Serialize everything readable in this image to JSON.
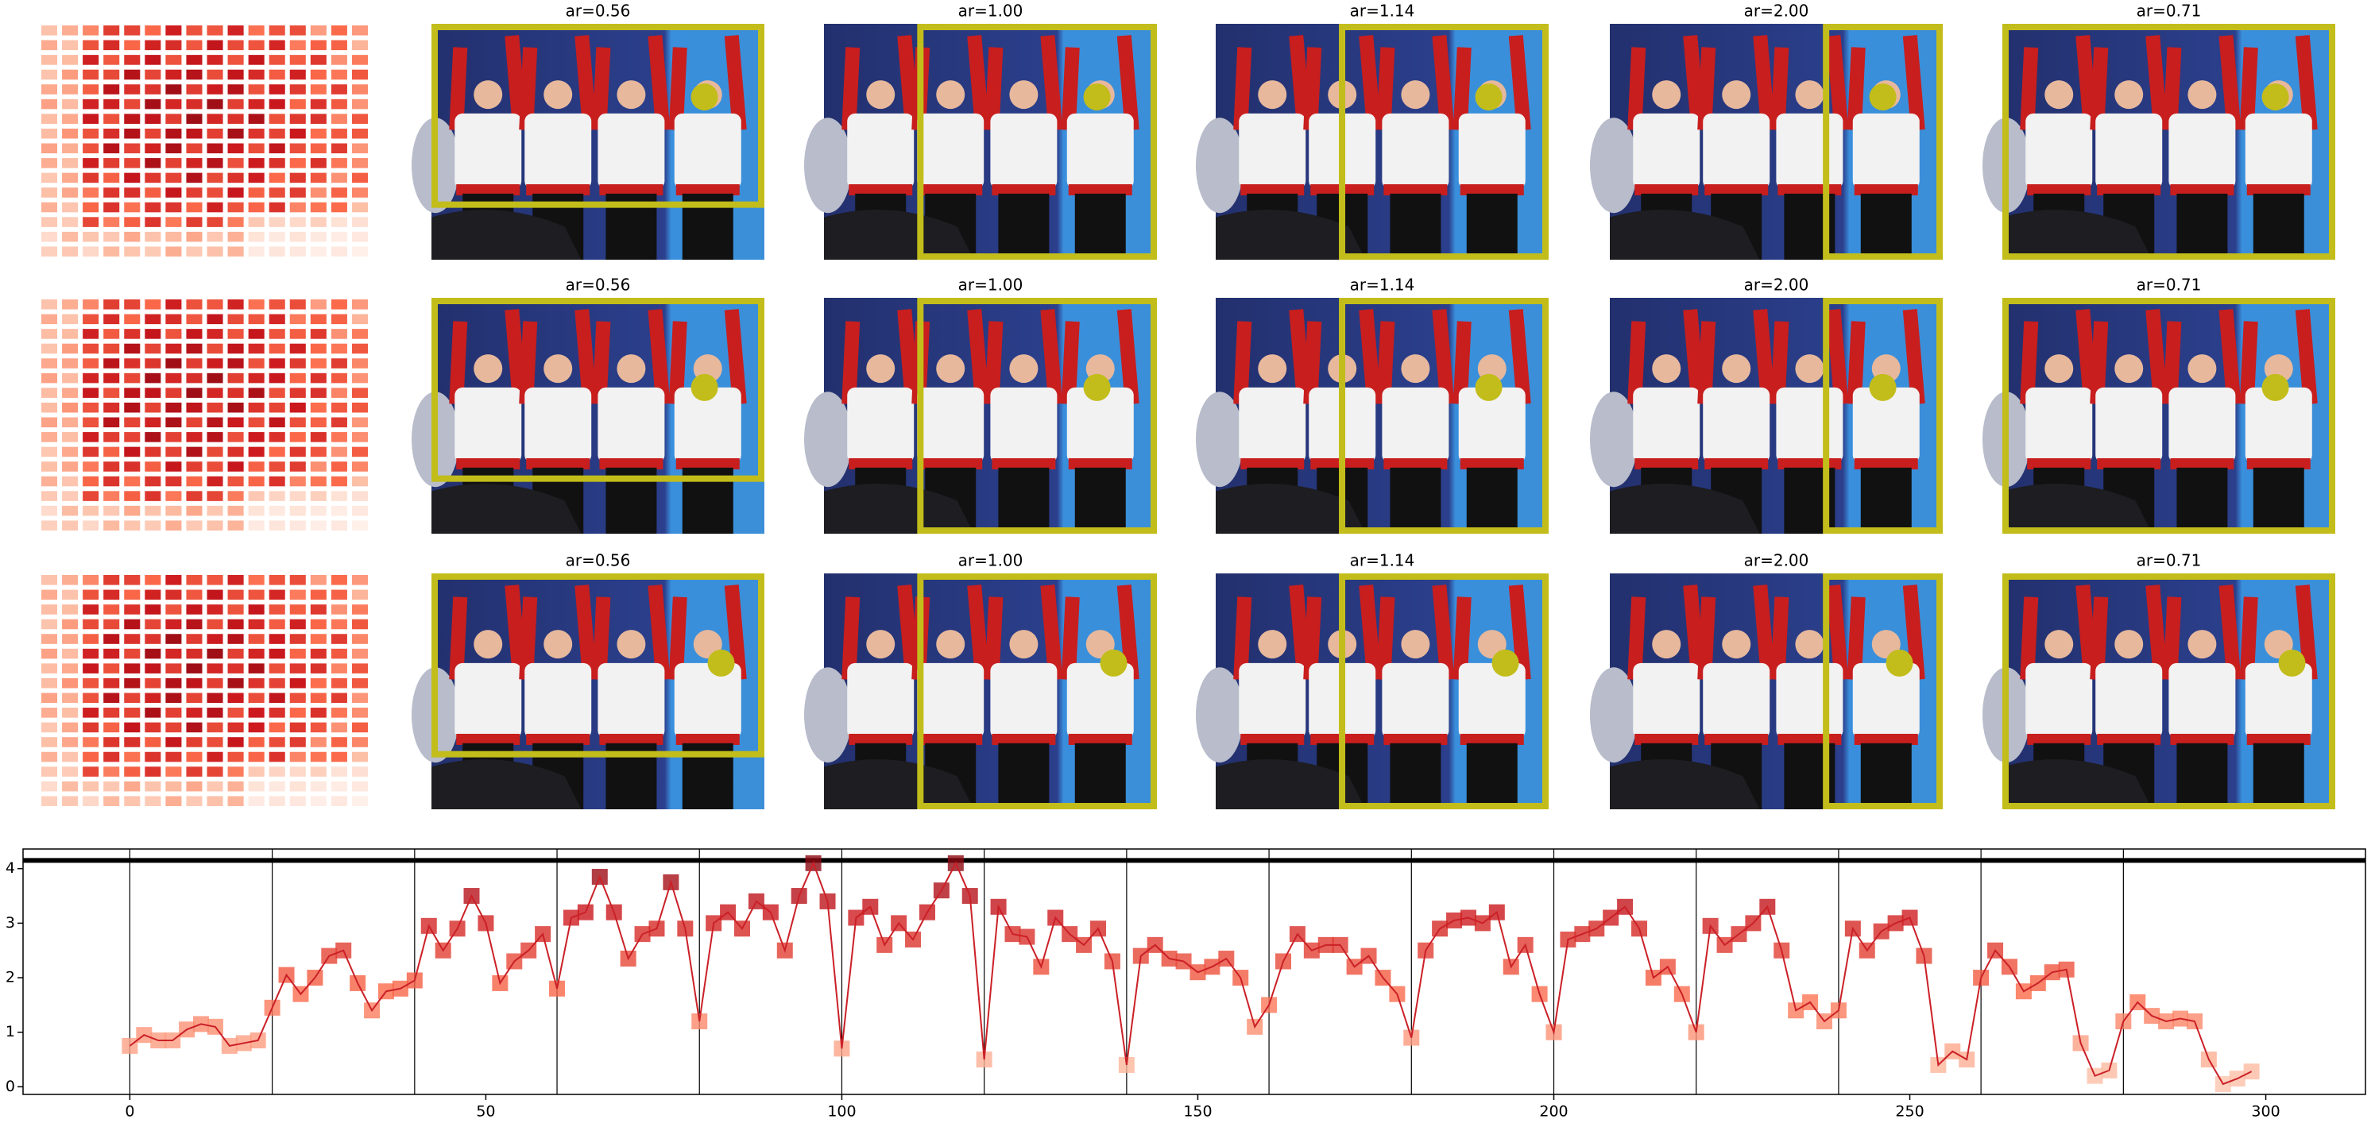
{
  "rows": [
    [
      "ar=0.56",
      "ar=1.00",
      "ar=1.14",
      "ar=2.00",
      "ar=0.71"
    ],
    [
      "ar=0.56",
      "ar=1.00",
      "ar=1.14",
      "ar=2.00",
      "ar=0.71"
    ],
    [
      "ar=0.56",
      "ar=1.00",
      "ar=1.14",
      "ar=2.00",
      "ar=0.71"
    ]
  ],
  "chart_data": {
    "type": "line",
    "x": [
      0,
      2,
      4,
      6,
      8,
      10,
      12,
      14,
      16,
      18,
      20,
      22,
      24,
      26,
      28,
      30,
      32,
      34,
      36,
      38,
      40,
      42,
      44,
      46,
      48,
      50,
      52,
      54,
      56,
      58,
      60,
      62,
      64,
      66,
      68,
      70,
      72,
      74,
      76,
      78,
      80,
      82,
      84,
      86,
      88,
      90,
      92,
      94,
      96,
      98,
      100,
      102,
      104,
      106,
      108,
      110,
      112,
      114,
      116,
      118,
      120,
      122,
      124,
      126,
      128,
      130,
      132,
      134,
      136,
      138,
      140,
      142,
      144,
      146,
      148,
      150,
      152,
      154,
      156,
      158,
      160,
      162,
      164,
      166,
      168,
      170,
      172,
      174,
      176,
      178,
      180,
      182,
      184,
      186,
      188,
      190,
      192,
      194,
      196,
      198,
      200,
      202,
      204,
      206,
      208,
      210,
      212,
      214,
      216,
      218,
      220,
      222,
      224,
      226,
      228,
      230,
      232,
      234,
      236,
      238,
      240,
      242,
      244,
      246,
      248,
      250,
      252,
      254,
      256,
      258,
      260,
      262,
      264,
      266,
      268,
      270,
      272,
      274,
      276,
      278,
      280,
      282,
      284,
      286,
      288,
      290,
      292,
      294,
      296,
      298
    ],
    "series": [
      {
        "color": "#cb2027",
        "values": [
          0.75,
          0.95,
          0.85,
          0.85,
          1.05,
          1.15,
          1.1,
          0.75,
          0.8,
          0.85,
          1.45,
          2.05,
          1.7,
          2.0,
          2.4,
          2.5,
          1.9,
          1.4,
          1.75,
          1.8,
          1.95,
          2.95,
          2.5,
          2.9,
          3.5,
          3.0,
          1.9,
          2.3,
          2.5,
          2.8,
          1.8,
          3.1,
          3.2,
          3.85,
          3.2,
          2.35,
          2.8,
          2.9,
          3.75,
          2.9,
          1.2,
          3.0,
          3.2,
          2.9,
          3.4,
          3.2,
          2.5,
          3.5,
          4.1,
          3.4,
          0.7,
          3.1,
          3.3,
          2.6,
          3.0,
          2.7,
          3.2,
          3.6,
          4.1,
          3.5,
          0.5,
          3.3,
          2.8,
          2.75,
          2.2,
          3.1,
          2.8,
          2.6,
          2.9,
          2.3,
          0.4,
          2.4,
          2.6,
          2.35,
          2.3,
          2.1,
          2.2,
          2.35,
          2.0,
          1.1,
          1.5,
          2.3,
          2.8,
          2.5,
          2.6,
          2.6,
          2.2,
          2.4,
          2.0,
          1.7,
          0.9,
          2.5,
          2.9,
          3.05,
          3.1,
          3.0,
          3.2,
          2.2,
          2.6,
          1.7,
          1.0,
          2.7,
          2.8,
          2.9,
          3.1,
          3.3,
          2.9,
          2.0,
          2.2,
          1.7,
          1.0,
          2.95,
          2.6,
          2.8,
          3.0,
          3.3,
          2.5,
          1.4,
          1.55,
          1.2,
          1.4,
          2.9,
          2.5,
          2.85,
          3.0,
          3.1,
          2.4,
          0.4,
          0.65,
          0.5,
          2.0,
          2.5,
          2.2,
          1.75,
          1.9,
          2.1,
          2.15,
          0.8,
          0.2,
          0.3,
          1.2,
          1.55,
          1.3,
          1.2,
          1.25,
          1.2,
          0.5,
          0.05,
          0.15,
          0.28
        ]
      }
    ],
    "xlim": [
      -15,
      314
    ],
    "ylim": [
      -0.14,
      4.36
    ],
    "xticks": [
      0,
      50,
      100,
      150,
      200,
      250,
      300
    ],
    "yticks": [
      0,
      1,
      2,
      3,
      4
    ],
    "vlines": [
      0,
      20,
      40,
      60,
      80,
      100,
      120,
      140,
      160,
      180,
      200,
      220,
      240,
      260,
      280
    ],
    "hline": 4.15
  }
}
